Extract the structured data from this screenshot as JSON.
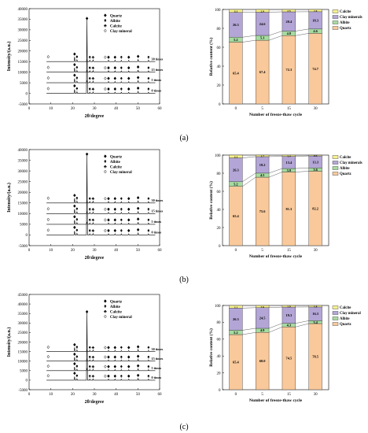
{
  "panels": [
    {
      "label": "(a)"
    },
    {
      "label": "(b)"
    },
    {
      "label": "(c)"
    }
  ],
  "chart_data": [
    {
      "type": "line",
      "panel": "a",
      "kind": "xrd",
      "xlabel": "2θ/degree",
      "ylabel": "Intensity/(a.u.)",
      "xlim": [
        0,
        60
      ],
      "ylim": [
        -5000,
        40000
      ],
      "xticks": [
        "0",
        "10",
        "20",
        "30",
        "40",
        "50",
        "60"
      ],
      "yticks": [
        "-5000",
        "0",
        "5000",
        "10000",
        "15000",
        "20000",
        "25000",
        "30000",
        "35000",
        "40000"
      ],
      "legend": [
        "Quartz",
        "Albite",
        "Calcite",
        "Clay mineral"
      ],
      "series": [
        {
          "name": "30 times",
          "offset": 15000
        },
        {
          "name": "15 times",
          "offset": 10000
        },
        {
          "name": "5 times",
          "offset": 5000
        },
        {
          "name": "0 times",
          "offset": 0
        }
      ],
      "main_peak": {
        "x": 26.6,
        "y": 35000
      }
    },
    {
      "type": "bar",
      "panel": "a",
      "kind": "stacked",
      "xlabel": "Number of freeze-thaw cycle",
      "ylabel": "Relative content (%)",
      "ylim": [
        0,
        100
      ],
      "yticks": [
        "0",
        "20",
        "40",
        "60",
        "80",
        "100"
      ],
      "categories": [
        "0",
        "5",
        "15",
        "30"
      ],
      "legend": [
        "Calcite",
        "Clay minerals",
        "Albite",
        "Quartz"
      ],
      "series": [
        {
          "name": "Quartz",
          "values": [
            65.4,
            67.4,
            72.3,
            74.7
          ]
        },
        {
          "name": "Albite",
          "values": [
            5.2,
            5.1,
            4.8,
            4.6
          ]
        },
        {
          "name": "Clay minerals",
          "values": [
            26.3,
            24.6,
            20.4,
            18.3
          ]
        },
        {
          "name": "Calcite",
          "values": [
            3.1,
            2.9,
            2.5,
            2.4
          ]
        }
      ],
      "data_labels": [
        [
          "65.4",
          "67.4",
          "72.3",
          "74.7"
        ],
        [
          "5.2",
          "5.1",
          "4.8",
          "4.6"
        ],
        [
          "26.3",
          "24.6",
          "20.4",
          "18.3"
        ],
        [
          "3.1",
          "2.9",
          "2.5",
          "2.4"
        ]
      ]
    },
    {
      "type": "line",
      "panel": "b",
      "kind": "xrd",
      "xlabel": "2θ/degree",
      "ylabel": "Intensity/(a.u.)",
      "xlim": [
        0,
        60
      ],
      "ylim": [
        -5000,
        40000
      ],
      "xticks": [
        "0",
        "10",
        "20",
        "30",
        "40",
        "50",
        "60"
      ],
      "yticks": [
        "-5000",
        "0",
        "5000",
        "10000",
        "15000",
        "20000",
        "25000",
        "30000",
        "35000",
        "40000"
      ],
      "legend": [
        "Quartz",
        "Albite",
        "Calcite",
        "Clay mineral"
      ],
      "series": [
        {
          "name": "30 times",
          "offset": 15000
        },
        {
          "name": "15 times",
          "offset": 10000
        },
        {
          "name": "5 times",
          "offset": 5000
        },
        {
          "name": "0 times",
          "offset": 0
        }
      ],
      "main_peak": {
        "x": 26.6,
        "y": 37500
      }
    },
    {
      "type": "bar",
      "panel": "b",
      "kind": "stacked",
      "xlabel": "Number of freeze-thaw cycle",
      "ylabel": "Relative content (%)",
      "ylim": [
        0,
        100
      ],
      "yticks": [
        "0",
        "20",
        "40",
        "60",
        "80",
        "100"
      ],
      "categories": [
        "0",
        "5",
        "15",
        "30"
      ],
      "legend": [
        "Calcite",
        "Clay minerals",
        "Albite",
        "Quartz"
      ],
      "series": [
        {
          "name": "Quartz",
          "values": [
            65.4,
            75.6,
            81.3,
            82.2
          ]
        },
        {
          "name": "Albite",
          "values": [
            5.2,
            4.5,
            3.9,
            3.6
          ]
        },
        {
          "name": "Clay minerals",
          "values": [
            26.3,
            18.2,
            13.4,
            13.3
          ]
        },
        {
          "name": "Calcite",
          "values": [
            3.1,
            1.7,
            1.4,
            0.9
          ]
        }
      ],
      "data_labels": [
        [
          "65.4",
          "75.6",
          "81.3",
          "82.2"
        ],
        [
          "5.2",
          "4.5",
          "3.9",
          "3.6"
        ],
        [
          "26.3",
          "18.2",
          "13.4",
          "13.3"
        ],
        [
          "3.1",
          "1.7",
          "1.4",
          "0.9"
        ]
      ]
    },
    {
      "type": "line",
      "panel": "c",
      "kind": "xrd",
      "xlabel": "2θ/degree",
      "ylabel": "Intensity/(a.u.)",
      "xlim": [
        0,
        60
      ],
      "ylim": [
        -5000,
        45000
      ],
      "xticks": [
        "0",
        "10",
        "20",
        "30",
        "40",
        "50",
        "60"
      ],
      "yticks": [
        "-5000",
        "0",
        "5000",
        "10000",
        "15000",
        "20000",
        "25000",
        "30000",
        "35000",
        "40000",
        "45000"
      ],
      "legend": [
        "Quartz",
        "Albite",
        "Calcite",
        "Clay mineral"
      ],
      "series": [
        {
          "name": "30 times",
          "offset": 15000
        },
        {
          "name": "15 times",
          "offset": 10000
        },
        {
          "name": "5 times",
          "offset": 5000
        },
        {
          "name": "0 times",
          "offset": 0
        }
      ],
      "main_peak": {
        "x": 26.6,
        "y": 35500
      }
    },
    {
      "type": "bar",
      "panel": "c",
      "kind": "stacked",
      "xlabel": "Number of freeze-thaw cycle",
      "ylabel": "Relative content (%)",
      "ylim": [
        0,
        100
      ],
      "yticks": [
        "0",
        "20",
        "40",
        "60",
        "80",
        "100"
      ],
      "categories": [
        "0",
        "5",
        "15",
        "30"
      ],
      "legend": [
        "Calcite",
        "Clay mineral",
        "Albite",
        "Quartz"
      ],
      "series": [
        {
          "name": "Quartz",
          "values": [
            65.4,
            68.0,
            74.5,
            78.5
          ]
        },
        {
          "name": "Albite",
          "values": [
            5.2,
            4.9,
            4.3,
            3.4
          ]
        },
        {
          "name": "Clay mineral",
          "values": [
            26.3,
            24.5,
            19.3,
            16.3
          ]
        },
        {
          "name": "Calcite",
          "values": [
            3.1,
            2.6,
            1.9,
            1.8
          ]
        }
      ],
      "data_labels": [
        [
          "65.4",
          "68.0",
          "74.5",
          "78.5"
        ],
        [
          "5.2",
          "4.9",
          "4.3",
          "3.4"
        ],
        [
          "26.3",
          "24.5",
          "19.3",
          "16.3"
        ],
        [
          "3.1",
          "2.6",
          "1.9",
          "1.8"
        ]
      ]
    }
  ],
  "colors": {
    "quartz": "#f9c99b",
    "albite": "#a6dba0",
    "clay": "#b3a6d6",
    "calcite": "#f7f08c"
  },
  "icons": {
    "quartz": "filled-diamond-icon",
    "albite": "filled-spade-icon",
    "calcite": "filled-club-icon",
    "clay": "open-diamond-icon"
  }
}
